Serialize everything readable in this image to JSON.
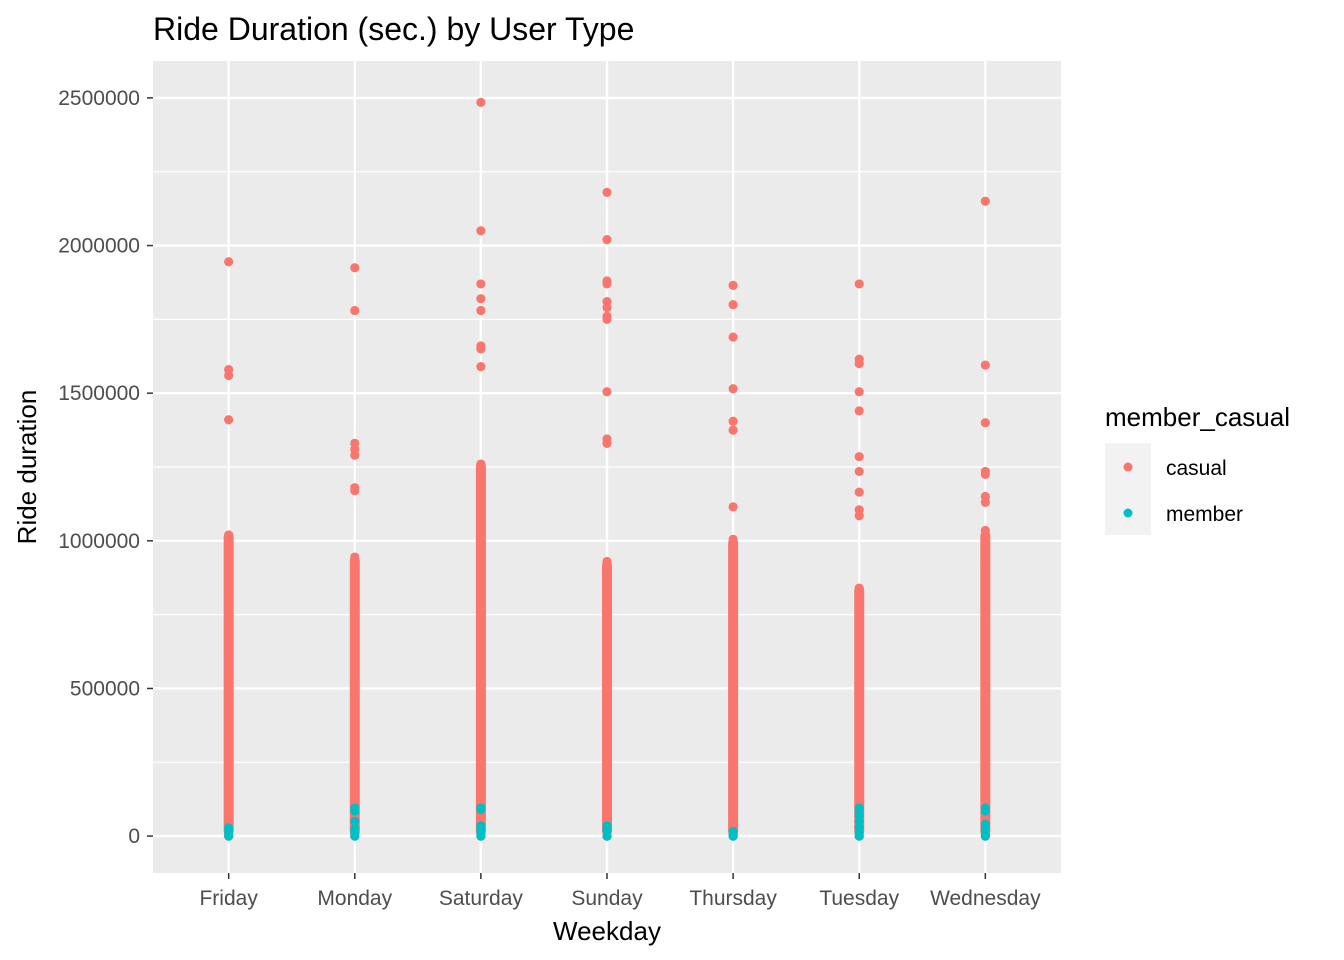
{
  "chart_data": {
    "type": "scatter",
    "title": "Ride Duration (sec.) by User Type",
    "xlabel": "Weekday",
    "ylabel": "Ride duration",
    "categories": [
      "Friday",
      "Monday",
      "Saturday",
      "Sunday",
      "Thursday",
      "Tuesday",
      "Wednesday"
    ],
    "ylim": [
      -125000,
      2625000
    ],
    "yticks": [
      0,
      500000,
      1000000,
      1500000,
      2000000,
      2500000
    ],
    "ytick_labels": [
      "0",
      "500000",
      "1000000",
      "1500000",
      "2000000",
      "2500000"
    ],
    "grid": true,
    "legend": {
      "title": "member_casual",
      "position": "right",
      "entries": [
        {
          "label": "casual",
          "color": "#F8766D"
        },
        {
          "label": "member",
          "color": "#00BFC4"
        }
      ]
    },
    "series": [
      {
        "name": "casual",
        "color": "#F8766D",
        "dense_range_max": [
          1030000,
          950000,
          1270000,
          935000,
          1010000,
          850000,
          1035000
        ],
        "outliers": [
          [
            1945000,
            1580000,
            1560000,
            1410000
          ],
          [
            1925000,
            1780000,
            1330000,
            1310000,
            1290000,
            1180000,
            1170000
          ],
          [
            2485000,
            2050000,
            1870000,
            1820000,
            1780000,
            1660000,
            1650000,
            1590000
          ],
          [
            2180000,
            2020000,
            1880000,
            1870000,
            1810000,
            1790000,
            1760000,
            1750000,
            1505000,
            1345000,
            1330000
          ],
          [
            1865000,
            1800000,
            1690000,
            1515000,
            1405000,
            1375000,
            1115000
          ],
          [
            1870000,
            1615000,
            1600000,
            1505000,
            1440000,
            1285000,
            1235000,
            1165000,
            1105000,
            1085000
          ],
          [
            2150000,
            1595000,
            1400000,
            1235000,
            1225000,
            1150000,
            1130000
          ]
        ]
      },
      {
        "name": "member",
        "color": "#00BFC4",
        "values_by_category": [
          [
            0,
            8000,
            18000,
            28000
          ],
          [
            0,
            10000,
            25000,
            50000,
            85000,
            95000
          ],
          [
            0,
            10000,
            25000,
            35000,
            90000,
            95000
          ],
          [
            0,
            20000,
            35000
          ],
          [
            0,
            5000,
            15000
          ],
          [
            0,
            10000,
            30000,
            50000,
            70000,
            85000,
            95000
          ],
          [
            0,
            10000,
            25000,
            40000,
            85000,
            95000
          ]
        ]
      }
    ]
  }
}
